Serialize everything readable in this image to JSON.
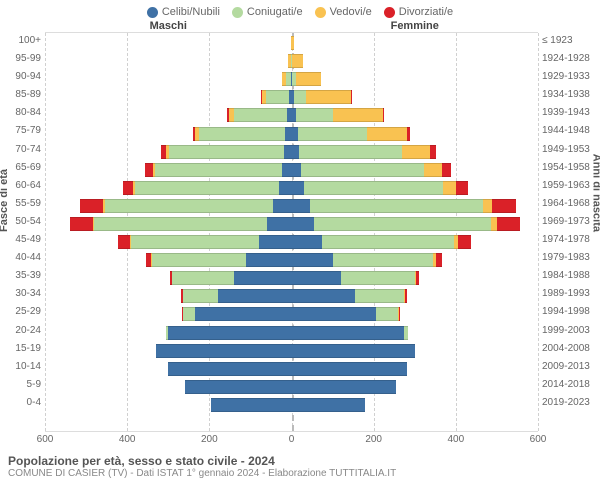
{
  "legend": [
    {
      "label": "Celibi/Nubili",
      "color": "#3f71a5"
    },
    {
      "label": "Coniugati/e",
      "color": "#b4daa0"
    },
    {
      "label": "Vedovi/e",
      "color": "#f9c251"
    },
    {
      "label": "Divorziati/e",
      "color": "#da2128"
    }
  ],
  "headers": {
    "male": "Maschi",
    "female": "Femmine"
  },
  "axis_left_title": "Fasce di età",
  "axis_right_title": "Anni di nascita",
  "xticks": [
    -600,
    -400,
    -200,
    0,
    200,
    400,
    600
  ],
  "xmax": 600,
  "rows": [
    {
      "age": "100+",
      "birth": "≤ 1923",
      "m": [
        0,
        0,
        2,
        0
      ],
      "f": [
        0,
        0,
        6,
        0
      ]
    },
    {
      "age": "95-99",
      "birth": "1924-1928",
      "m": [
        0,
        2,
        6,
        0
      ],
      "f": [
        0,
        2,
        25,
        0
      ]
    },
    {
      "age": "90-94",
      "birth": "1929-1933",
      "m": [
        2,
        12,
        10,
        0
      ],
      "f": [
        2,
        10,
        60,
        0
      ]
    },
    {
      "age": "85-89",
      "birth": "1934-1938",
      "m": [
        6,
        55,
        12,
        2
      ],
      "f": [
        6,
        30,
        110,
        2
      ]
    },
    {
      "age": "80-84",
      "birth": "1939-1943",
      "m": [
        10,
        130,
        12,
        4
      ],
      "f": [
        12,
        90,
        120,
        4
      ]
    },
    {
      "age": "75-79",
      "birth": "1944-1948",
      "m": [
        15,
        210,
        10,
        6
      ],
      "f": [
        15,
        170,
        95,
        8
      ]
    },
    {
      "age": "70-74",
      "birth": "1949-1953",
      "m": [
        18,
        280,
        8,
        12
      ],
      "f": [
        18,
        250,
        70,
        14
      ]
    },
    {
      "age": "65-69",
      "birth": "1954-1958",
      "m": [
        22,
        310,
        6,
        18
      ],
      "f": [
        22,
        300,
        45,
        22
      ]
    },
    {
      "age": "60-64",
      "birth": "1959-1963",
      "m": [
        30,
        350,
        5,
        25
      ],
      "f": [
        30,
        340,
        30,
        30
      ]
    },
    {
      "age": "55-59",
      "birth": "1964-1968",
      "m": [
        45,
        410,
        5,
        55
      ],
      "f": [
        45,
        420,
        22,
        60
      ]
    },
    {
      "age": "50-54",
      "birth": "1969-1973",
      "m": [
        60,
        420,
        4,
        55
      ],
      "f": [
        55,
        430,
        15,
        55
      ]
    },
    {
      "age": "45-49",
      "birth": "1974-1978",
      "m": [
        80,
        310,
        3,
        30
      ],
      "f": [
        75,
        320,
        10,
        32
      ]
    },
    {
      "age": "40-44",
      "birth": "1979-1983",
      "m": [
        110,
        230,
        2,
        12
      ],
      "f": [
        100,
        245,
        6,
        15
      ]
    },
    {
      "age": "35-39",
      "birth": "1984-1988",
      "m": [
        140,
        150,
        1,
        6
      ],
      "f": [
        120,
        180,
        3,
        8
      ]
    },
    {
      "age": "30-34",
      "birth": "1989-1993",
      "m": [
        180,
        85,
        0,
        3
      ],
      "f": [
        155,
        120,
        2,
        5
      ]
    },
    {
      "age": "25-29",
      "birth": "1994-1998",
      "m": [
        235,
        30,
        0,
        1
      ],
      "f": [
        205,
        55,
        1,
        2
      ]
    },
    {
      "age": "20-24",
      "birth": "1999-2003",
      "m": [
        300,
        5,
        0,
        0
      ],
      "f": [
        275,
        8,
        0,
        0
      ]
    },
    {
      "age": "15-19",
      "birth": "2004-2008",
      "m": [
        330,
        0,
        0,
        0
      ],
      "f": [
        300,
        0,
        0,
        0
      ]
    },
    {
      "age": "10-14",
      "birth": "2009-2013",
      "m": [
        300,
        0,
        0,
        0
      ],
      "f": [
        280,
        0,
        0,
        0
      ]
    },
    {
      "age": "5-9",
      "birth": "2014-2018",
      "m": [
        260,
        0,
        0,
        0
      ],
      "f": [
        255,
        0,
        0,
        0
      ]
    },
    {
      "age": "0-4",
      "birth": "2019-2023",
      "m": [
        195,
        0,
        0,
        0
      ],
      "f": [
        180,
        0,
        0,
        0
      ]
    }
  ],
  "footer": {
    "title": "Popolazione per età, sesso e stato civile - 2024",
    "sub": "COMUNE DI CASIER (TV) - Dati ISTAT 1° gennaio 2024 - Elaborazione TUTTITALIA.IT"
  }
}
